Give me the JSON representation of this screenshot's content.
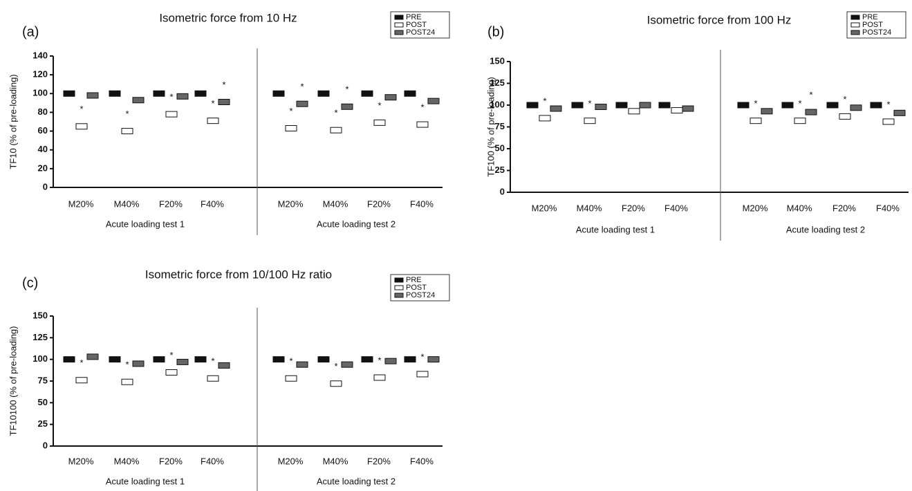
{
  "chart_data": [
    {
      "type": "dot",
      "panel_label": "(a)",
      "title": "Isometric force from 10 Hz",
      "y_label": "TF10 (% of pre-loading)",
      "categories": [
        "M20%",
        "M40%",
        "F20%",
        "F40%",
        "M20%",
        "M40%",
        "F20%",
        "F40%"
      ],
      "groups": [
        "Acute loading test 1",
        "Acute loading test 2"
      ],
      "ylim": [
        0,
        140
      ],
      "yticks": [
        0,
        20,
        40,
        60,
        80,
        100,
        120,
        140
      ],
      "series": [
        {
          "name": "PRE",
          "color": "#111111",
          "values": [
            100,
            100,
            100,
            100,
            100,
            100,
            100,
            100
          ]
        },
        {
          "name": "POST",
          "color": "#ffffff",
          "values": [
            65,
            60,
            78,
            71,
            63,
            61,
            69,
            67
          ],
          "annotations": [
            "*",
            "*",
            "*",
            "*",
            "*",
            "*",
            "*",
            "*"
          ]
        },
        {
          "name": "POST24",
          "color": "#666666",
          "values": [
            98,
            93,
            97,
            91,
            89,
            86,
            96,
            92
          ],
          "annotations": [
            null,
            null,
            null,
            "*",
            "*",
            "*",
            null,
            null
          ]
        }
      ]
    },
    {
      "type": "dot",
      "panel_label": "(b)",
      "title": "Isometric force from 100 Hz",
      "y_label": "TF100 (% of pre-loading)",
      "categories": [
        "M20%",
        "M40%",
        "F20%",
        "F40%",
        "M20%",
        "M40%",
        "F20%",
        "F40%"
      ],
      "groups": [
        "Acute loading test 1",
        "Acute loading test 2"
      ],
      "ylim": [
        0,
        150
      ],
      "yticks": [
        0,
        25,
        50,
        75,
        100,
        125,
        150
      ],
      "series": [
        {
          "name": "PRE",
          "color": "#111111",
          "values": [
            100,
            100,
            100,
            100,
            100,
            100,
            100,
            100
          ]
        },
        {
          "name": "POST",
          "color": "#ffffff",
          "values": [
            85,
            82,
            93,
            94,
            82,
            82,
            87,
            81
          ],
          "annotations": [
            "*",
            "*",
            null,
            null,
            "*",
            "*",
            "*",
            "*"
          ]
        },
        {
          "name": "POST24",
          "color": "#666666",
          "values": [
            96,
            98,
            100,
            96,
            93,
            92,
            97,
            91
          ],
          "annotations": [
            null,
            null,
            null,
            null,
            null,
            "*",
            null,
            null
          ]
        }
      ]
    },
    {
      "type": "dot",
      "panel_label": "(c)",
      "title": "Isometric force from 10/100 Hz ratio",
      "y_label": "TF10100 (% of pre-loading)",
      "categories": [
        "M20%",
        "M40%",
        "F20%",
        "F40%",
        "M20%",
        "M40%",
        "F20%",
        "F40%"
      ],
      "groups": [
        "Acute loading test 1",
        "Acute loading test 2"
      ],
      "ylim": [
        0,
        150
      ],
      "yticks": [
        0,
        25,
        50,
        75,
        100,
        125,
        150
      ],
      "series": [
        {
          "name": "PRE",
          "color": "#111111",
          "values": [
            100,
            100,
            100,
            100,
            100,
            100,
            100,
            100
          ]
        },
        {
          "name": "POST",
          "color": "#ffffff",
          "values": [
            76,
            74,
            85,
            78,
            78,
            72,
            79,
            83
          ],
          "annotations": [
            "*",
            "*",
            "*",
            "*",
            "*",
            "*",
            "*",
            "*"
          ]
        },
        {
          "name": "POST24",
          "color": "#666666",
          "values": [
            103,
            95,
            97,
            93,
            94,
            94,
            98,
            100
          ],
          "annotations": [
            null,
            null,
            null,
            null,
            null,
            null,
            null,
            null
          ]
        }
      ]
    }
  ]
}
